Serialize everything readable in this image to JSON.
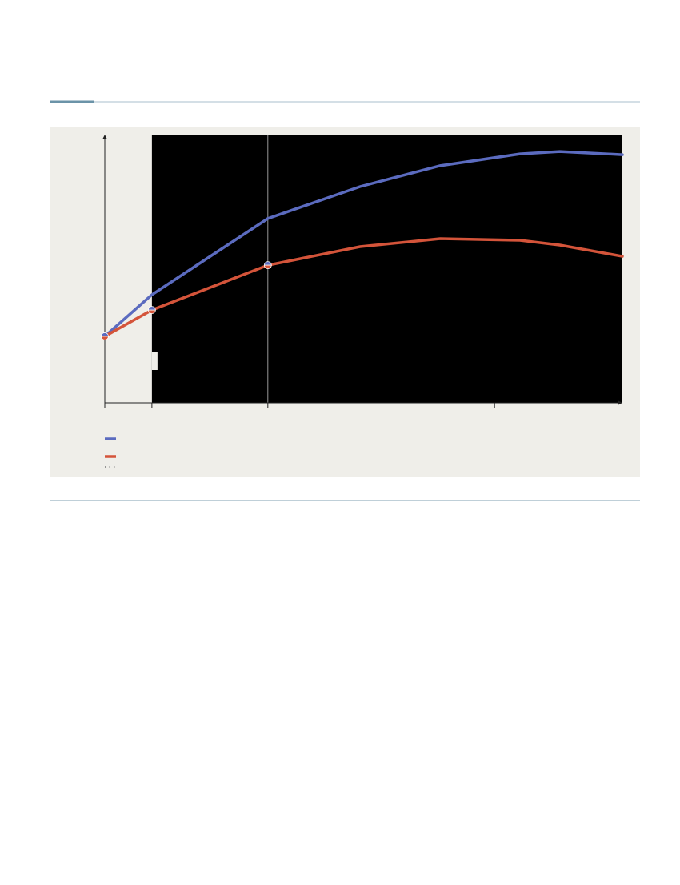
{
  "chart_data": {
    "type": "line",
    "x": [
      0,
      9.1,
      31.5,
      49.3,
      64.8,
      80.2,
      87.9,
      100
    ],
    "series": [
      {
        "color": "#5b6bbf",
        "values": [
          24.8,
          40.3,
          68.7,
          80.6,
          88.4,
          92.8,
          93.7,
          92.5
        ]
      },
      {
        "color": "#d4543a",
        "values": [
          24.8,
          34.6,
          51.3,
          58.2,
          61.2,
          60.6,
          58.8,
          54.6
        ],
        "markers": [
          true,
          true,
          true,
          false,
          false,
          false,
          false,
          false
        ]
      }
    ],
    "xlim": [
      0,
      100
    ],
    "ylim": [
      0,
      100
    ],
    "xticks": [
      0,
      9.1,
      31.5,
      75.3
    ],
    "vline": 31.5,
    "shaded_region": [
      9.1,
      100
    ],
    "shaded_color": "#000000"
  }
}
